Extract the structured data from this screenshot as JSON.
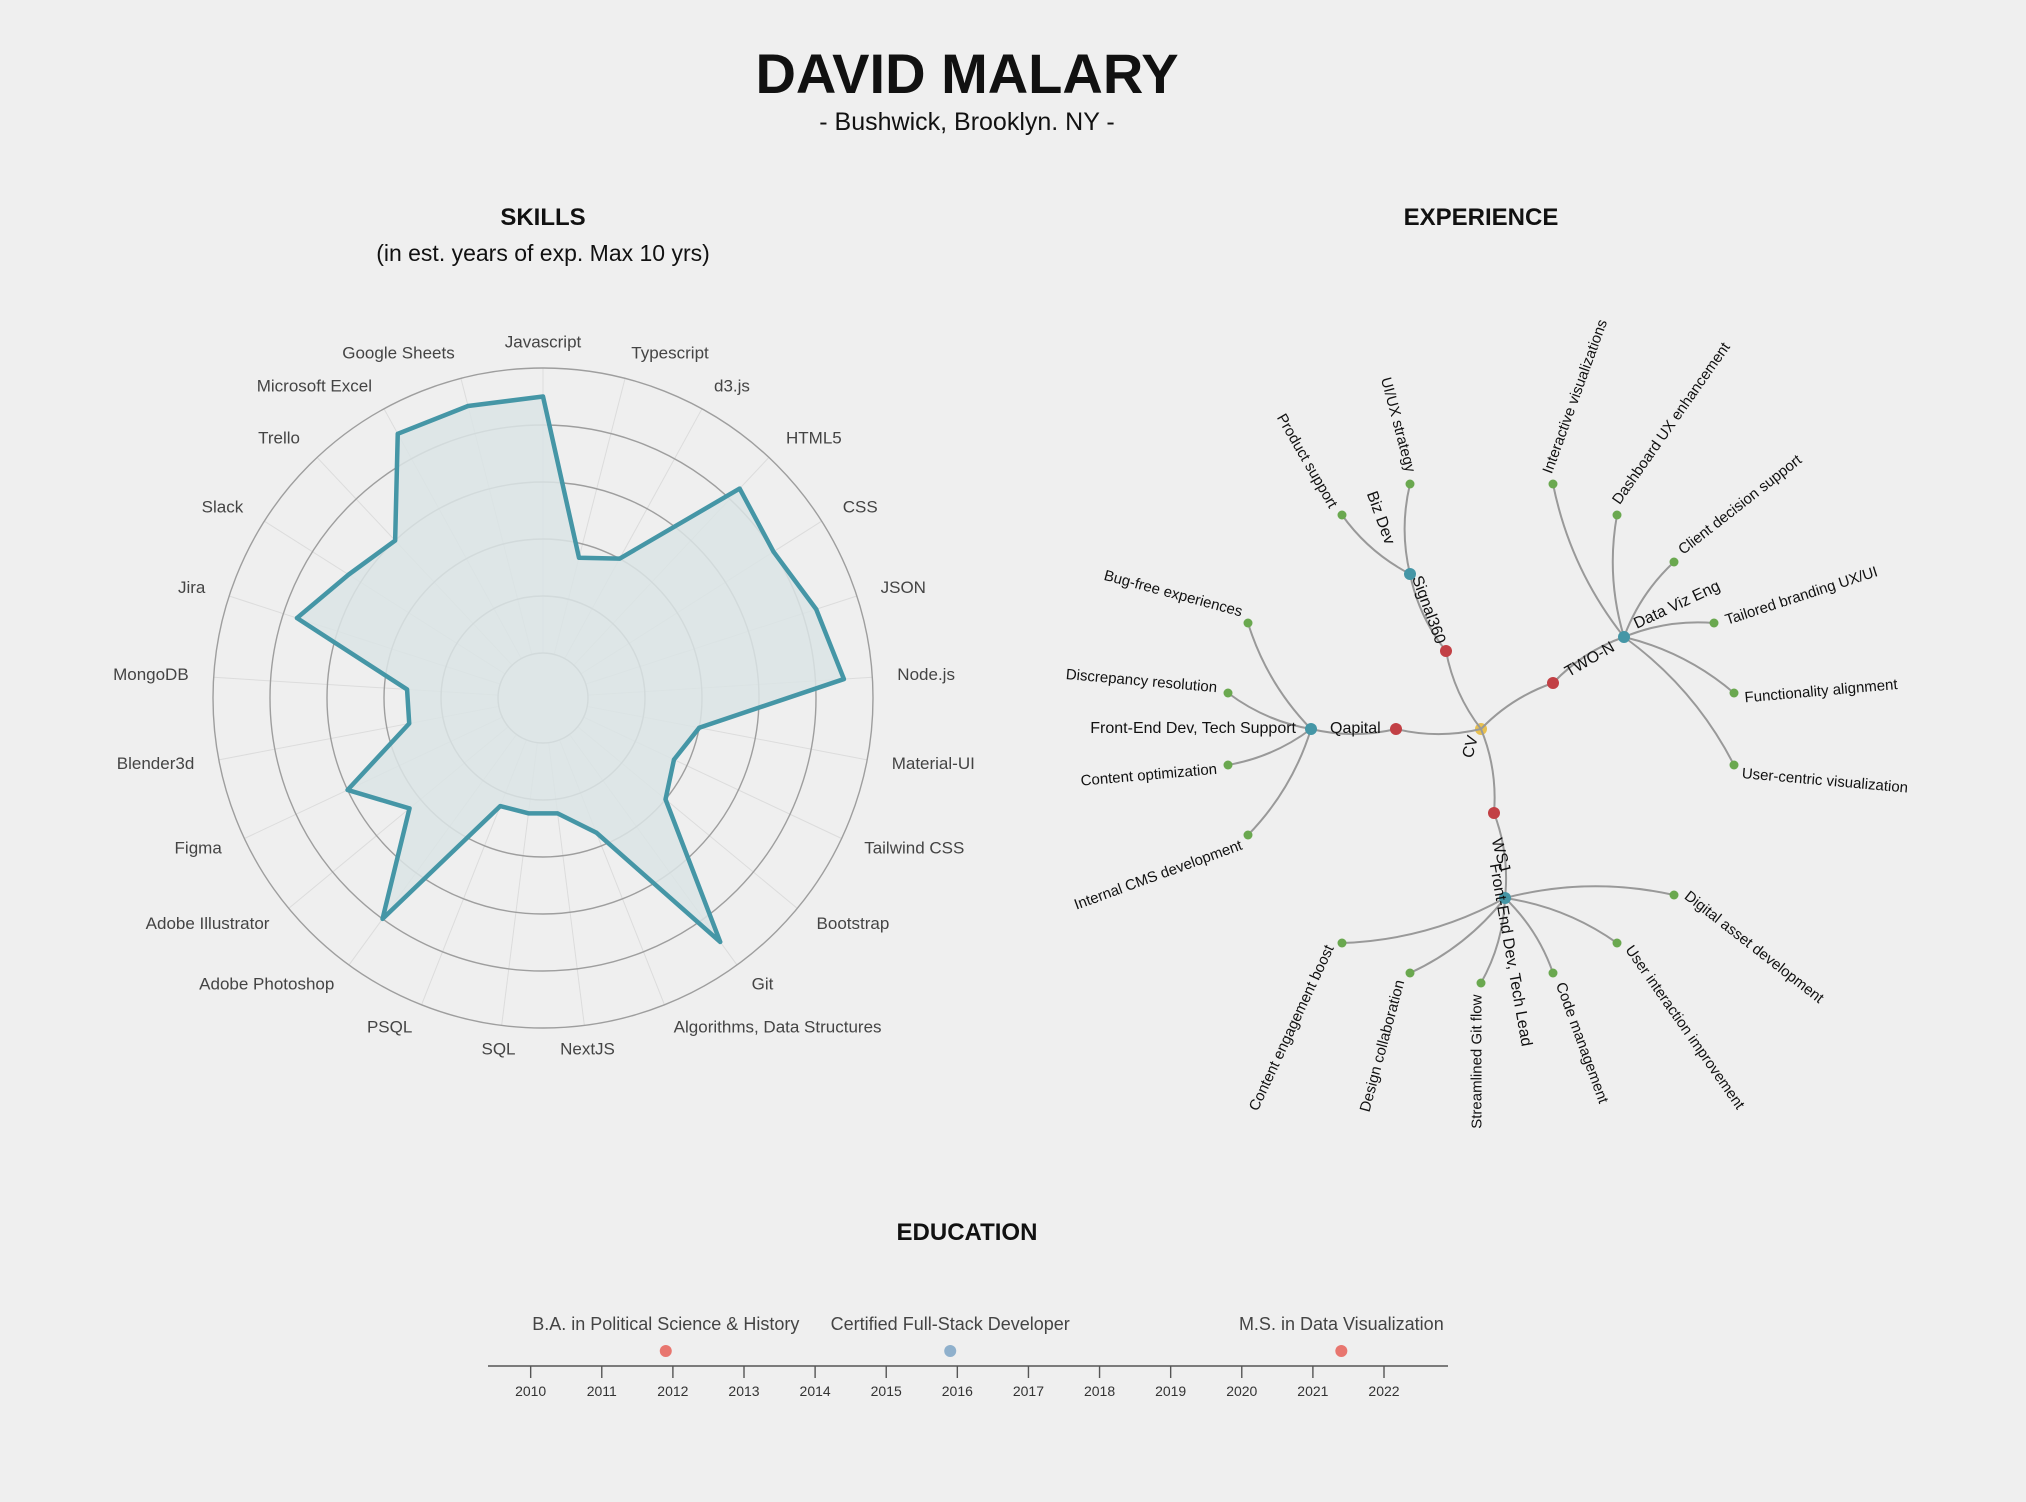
{
  "header": {
    "name": "DAVID MALARY",
    "location": "- Bushwick, Brooklyn. NY -"
  },
  "colors": {
    "background": "#efefef",
    "radar_stroke": "#4596a6",
    "radar_fill": "#dbe4e5",
    "ring": "#9e9e9e",
    "root_node": "#e8c04f",
    "company_node": "#c24045",
    "role_node": "#4596a6",
    "task_node": "#6aa84f",
    "edu_degree": "#e8766f",
    "edu_cert": "#8fb0cc"
  },
  "skills": {
    "title": "SKILLS",
    "subtitle": "(in est. years of exp. Max 10 yrs)"
  },
  "experience": {
    "title": "EXPERIENCE",
    "tree": {
      "root": "CV",
      "companies": [
        {
          "name": "Qapital",
          "role": "Front-End Dev, Tech Support",
          "tasks": [
            "Bug-free experiences",
            "Discrepancy resolution",
            "Content optimization",
            "Internal CMS development"
          ]
        },
        {
          "name": "Signal360",
          "role": "Biz Dev",
          "tasks": [
            "Product support",
            "UI/UX strategy"
          ]
        },
        {
          "name": "TWO-N",
          "role": "Data Viz Eng",
          "tasks": [
            "Interactive visualizations",
            "Dashboard UX enhancement",
            "Client decision support",
            "Tailored branding UX/UI",
            "Functionality alignment",
            "User-centric visualization"
          ]
        },
        {
          "name": "WSJ",
          "role": "Front-End Dev, Tech Lead",
          "tasks": [
            "Content engagement boost",
            "Design collaboration",
            "Streamlined Git flow",
            "Code management",
            "User interaction improvement",
            "Digital asset development"
          ]
        }
      ]
    }
  },
  "education": {
    "title": "EDUCATION"
  },
  "chart_data": [
    {
      "type": "radar",
      "title": "SKILLS",
      "subtitle": "(in est. years of exp. Max 10 yrs)",
      "rmax": 10,
      "rings": [
        2,
        4,
        6,
        8,
        10
      ],
      "categories": [
        "Javascript",
        "Typescript",
        "d3.js",
        "HTML5",
        "CSS",
        "JSON",
        "Node.js",
        "Material-UI",
        "Tailwind CSS",
        "Bootstrap",
        "Git",
        "Algorithms, Data Structures",
        "NextJS",
        "SQL",
        "PSQL",
        "Adobe Photoshop",
        "Adobe Illustrator",
        "Figma",
        "Blender3d",
        "MongoDB",
        "Jira",
        "Slack",
        "Trello",
        "Microsoft Excel",
        "Google Sheets"
      ],
      "values": [
        9,
        3.5,
        4,
        8.5,
        8,
        8.5,
        9,
        4,
        3.5,
        4,
        9,
        3.5,
        2.5,
        2.5,
        2.5,
        8,
        4.5,
        6,
        3.2,
        3.2,
        7.5,
        6.5,
        6,
        9,
        9
      ]
    },
    {
      "type": "timeline",
      "title": "EDUCATION",
      "x_ticks": [
        2010,
        2011,
        2012,
        2013,
        2014,
        2015,
        2016,
        2017,
        2018,
        2019,
        2020,
        2021,
        2022
      ],
      "xlim": [
        2009.4,
        2022.9
      ],
      "events": [
        {
          "label": "B.A. in Political Science & History",
          "year": 2011.9,
          "kind": "degree"
        },
        {
          "label": "Certified Full-Stack Developer",
          "year": 2015.9,
          "kind": "cert"
        },
        {
          "label": "M.S. in Data Visualization",
          "year": 2021.4,
          "kind": "degree"
        }
      ]
    }
  ]
}
